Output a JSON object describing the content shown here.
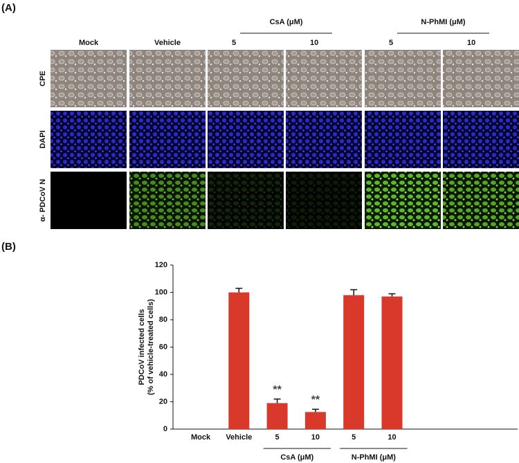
{
  "panel_a": {
    "label": "(A)",
    "columns": [
      "Mock",
      "Vehicle",
      "5",
      "10",
      "5",
      "10"
    ],
    "groups": [
      {
        "label": "CsA (μM)",
        "span": [
          2,
          3
        ]
      },
      {
        "label": "N-PhMI (μM)",
        "span": [
          4,
          5
        ]
      }
    ],
    "rows": [
      "CPE",
      "DAPI",
      "α- PDCoV N"
    ]
  },
  "chart_data": {
    "type": "bar",
    "panel_label": "(B)",
    "y_label": [
      "PDCoV infected cells",
      "(% of vehicle-treated cells)"
    ],
    "categories": [
      "Mock",
      "Vehicle",
      "5",
      "10",
      "5",
      "10"
    ],
    "values": [
      0,
      100,
      19,
      12.5,
      98,
      97
    ],
    "errors": [
      0,
      3,
      3,
      2,
      4,
      2
    ],
    "annotations": [
      null,
      null,
      "**",
      "**",
      null,
      null
    ],
    "groups": [
      {
        "label": "CsA (μM)",
        "span": [
          2,
          3
        ]
      },
      {
        "label": "N-PhMI (μM)",
        "span": [
          4,
          5
        ]
      }
    ],
    "color": "#d8392b",
    "ylim": [
      0,
      120
    ],
    "yticks": [
      0,
      20,
      40,
      60,
      80,
      100,
      120
    ],
    "grid": false
  }
}
